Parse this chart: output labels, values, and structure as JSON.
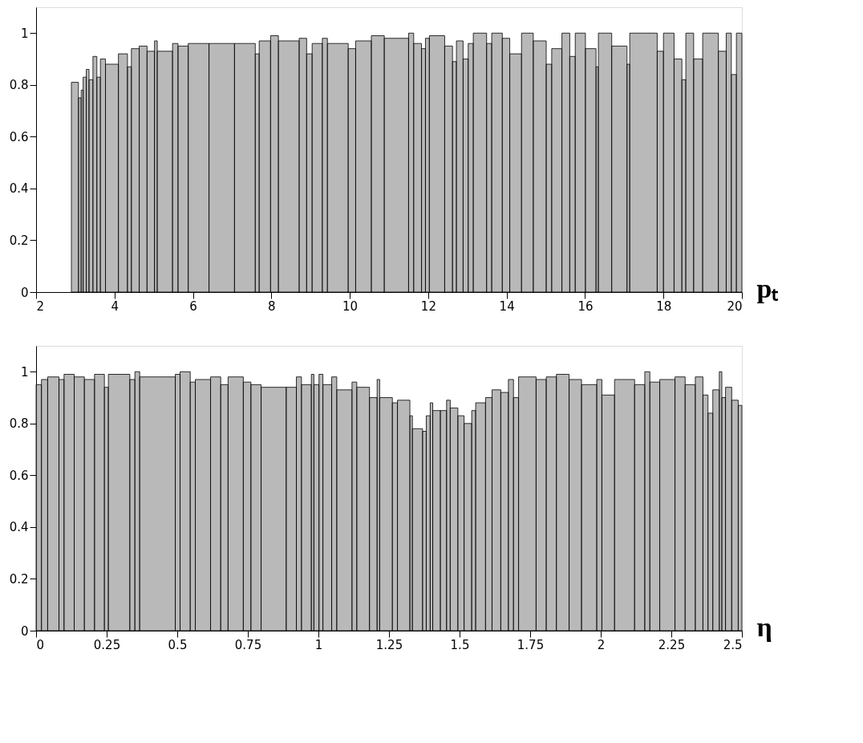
{
  "chart_data": [
    {
      "type": "histogram",
      "xlabel": "pₜ",
      "color": "#7f7f7f",
      "bins": [
        2.9,
        3.08,
        3.15,
        3.2,
        3.28,
        3.35,
        3.45,
        3.55,
        3.64,
        3.77,
        4.1,
        4.33,
        4.43,
        4.63,
        4.83,
        5.02,
        5.09,
        5.48,
        5.62,
        5.88,
        6.41,
        7.06,
        7.59,
        7.69,
        7.98,
        8.18,
        8.71,
        8.9,
        9.04,
        9.3,
        9.43,
        9.96,
        10.15,
        10.55,
        10.88,
        11.5,
        11.63,
        11.83,
        11.93,
        12.03,
        12.42,
        12.62,
        12.72,
        12.89,
        13.02,
        13.15,
        13.49,
        13.62,
        13.89,
        14.08,
        14.38,
        14.68,
        15.01,
        15.15,
        15.41,
        15.61,
        15.75,
        16.01,
        16.28,
        16.34,
        16.68,
        17.07,
        17.14,
        17.84,
        18.0,
        18.27,
        18.47,
        18.57,
        18.77,
        19.0,
        19.4,
        19.6,
        19.73,
        19.86,
        20
      ],
      "values": [
        0.81,
        0.75,
        0.78,
        0.83,
        0.86,
        0.82,
        0.91,
        0.83,
        0.9,
        0.88,
        0.92,
        0.87,
        0.94,
        0.95,
        0.93,
        0.97,
        0.93,
        0.96,
        0.95,
        0.96,
        0.96,
        0.96,
        0.92,
        0.97,
        0.99,
        0.97,
        0.98,
        0.92,
        0.96,
        0.98,
        0.96,
        0.94,
        0.97,
        0.99,
        0.98,
        1.0,
        0.96,
        0.94,
        0.98,
        0.99,
        0.95,
        0.89,
        0.97,
        0.9,
        0.96,
        1.0,
        0.96,
        1.0,
        0.98,
        0.92,
        1.0,
        0.97,
        0.88,
        0.94,
        1.0,
        0.91,
        1.0,
        0.94,
        0.87,
        1.0,
        0.95,
        0.88,
        1.0,
        0.93,
        1.0,
        0.9,
        0.82,
        1.0,
        0.9,
        1.0,
        0.93,
        1.0,
        0.84,
        1.0
      ],
      "xlim": [
        2,
        20
      ],
      "xticks": [
        2,
        4,
        6,
        8,
        10,
        12,
        14,
        16,
        18,
        20
      ],
      "ylim": [
        0,
        1.1
      ],
      "yticks": [
        0,
        0.2,
        0.4,
        0.6,
        0.8,
        1
      ],
      "grid": false
    },
    {
      "type": "histogram",
      "xlabel": "η",
      "color": "#7f7f7f",
      "bins": [
        0,
        0.019,
        0.041,
        0.081,
        0.099,
        0.135,
        0.171,
        0.207,
        0.242,
        0.256,
        0.332,
        0.35,
        0.367,
        0.493,
        0.51,
        0.546,
        0.564,
        0.618,
        0.654,
        0.68,
        0.734,
        0.761,
        0.797,
        0.886,
        0.922,
        0.94,
        0.975,
        0.984,
        1.002,
        1.016,
        1.047,
        1.065,
        1.119,
        1.136,
        1.181,
        1.208,
        1.217,
        1.262,
        1.28,
        1.324,
        1.333,
        1.369,
        1.382,
        1.396,
        1.405,
        1.432,
        1.454,
        1.467,
        1.494,
        1.516,
        1.543,
        1.557,
        1.592,
        1.615,
        1.646,
        1.673,
        1.691,
        1.709,
        1.771,
        1.807,
        1.843,
        1.888,
        1.932,
        1.986,
        2.004,
        2.049,
        2.12,
        2.156,
        2.174,
        2.209,
        2.263,
        2.299,
        2.335,
        2.362,
        2.38,
        2.397,
        2.42,
        2.429,
        2.442,
        2.464,
        2.487,
        2.5
      ],
      "values": [
        0.95,
        0.97,
        0.98,
        0.97,
        0.99,
        0.98,
        0.97,
        0.99,
        0.94,
        0.99,
        0.97,
        1.0,
        0.98,
        0.99,
        1.0,
        0.96,
        0.97,
        0.98,
        0.95,
        0.98,
        0.96,
        0.95,
        0.94,
        0.94,
        0.98,
        0.95,
        0.99,
        0.95,
        0.99,
        0.95,
        0.98,
        0.93,
        0.96,
        0.94,
        0.9,
        0.97,
        0.9,
        0.88,
        0.89,
        0.83,
        0.78,
        0.77,
        0.83,
        0.88,
        0.85,
        0.85,
        0.89,
        0.86,
        0.83,
        0.8,
        0.85,
        0.88,
        0.9,
        0.93,
        0.92,
        0.97,
        0.9,
        0.98,
        0.97,
        0.98,
        0.99,
        0.97,
        0.95,
        0.97,
        0.91,
        0.97,
        0.95,
        1.0,
        0.96,
        0.97,
        0.98,
        0.95,
        0.98,
        0.91,
        0.84,
        0.93,
        1.0,
        0.9,
        0.94,
        0.89,
        0.87
      ],
      "xlim": [
        0,
        2.5
      ],
      "xticks": [
        0,
        0.25,
        0.5,
        0.75,
        1,
        1.25,
        1.5,
        1.75,
        2,
        2.25,
        2.5
      ],
      "ylim": [
        0,
        1.1
      ],
      "yticks": [
        0,
        0.2,
        0.4,
        0.6,
        0.8,
        1
      ],
      "grid": false
    }
  ]
}
